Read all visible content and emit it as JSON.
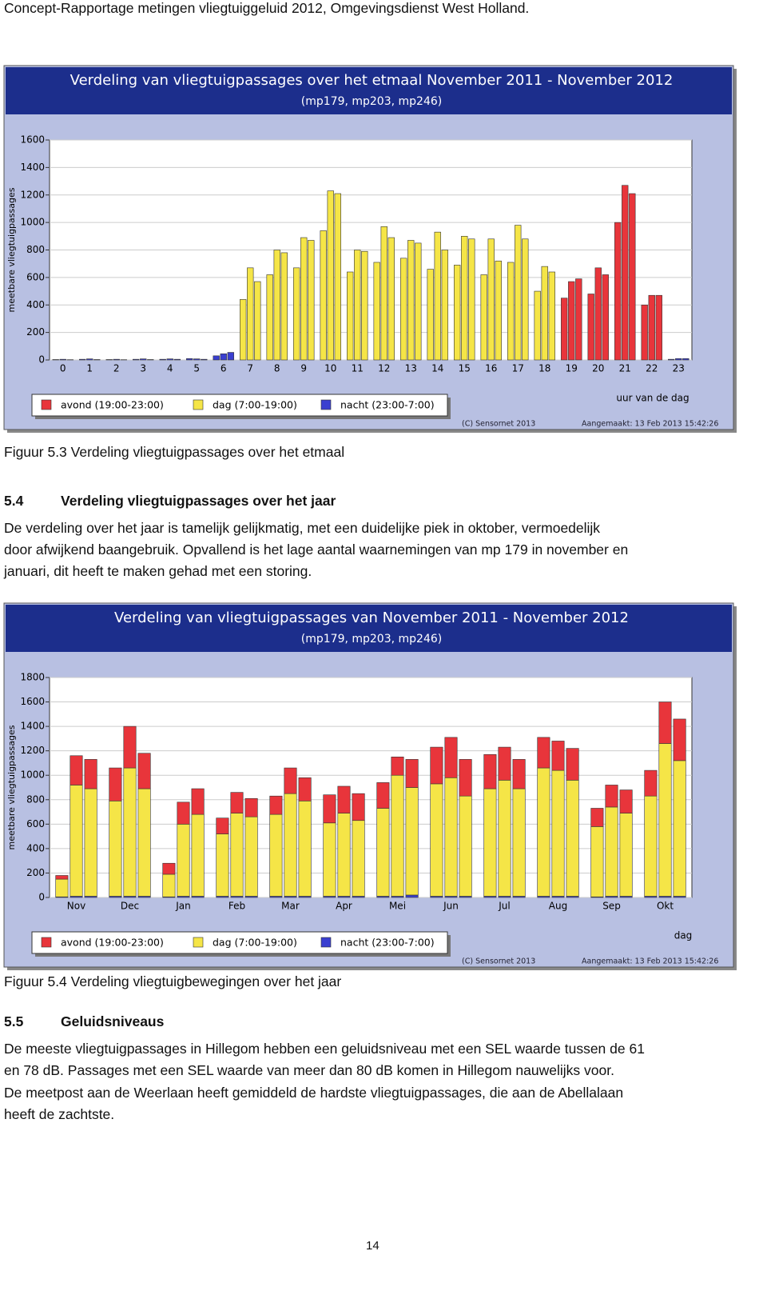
{
  "header": "Concept-Rapportage metingen vliegtuiggeluid 2012, Omgevingsdienst West Holland.",
  "chart_data": [
    {
      "type": "bar",
      "title": "Verdeling van vliegtuigpassages over het etmaal November 2011 - November 2012",
      "subtitle": "(mp179, mp203, mp246)",
      "ylabel": "meetbare vliegtuigpassages",
      "xlabel": "uur van de dag",
      "credit": "(C) Sensornet 2013",
      "created": "Aangemaakt: 13 Feb 2013 15:42:26",
      "categories": [
        "0",
        "1",
        "2",
        "3",
        "4",
        "5",
        "6",
        "7",
        "8",
        "9",
        "10",
        "11",
        "12",
        "13",
        "14",
        "15",
        "16",
        "17",
        "18",
        "19",
        "20",
        "21",
        "22",
        "23"
      ],
      "ylim": [
        0,
        1600
      ],
      "yticks": [
        0,
        200,
        400,
        600,
        800,
        1000,
        1200,
        1400,
        1600
      ],
      "grid": true,
      "series": [
        {
          "name": "avond (19:00-23:00)",
          "color": "#e8353b",
          "values": [
            null,
            null,
            null,
            null,
            null,
            null,
            null,
            null,
            null,
            null,
            null,
            null,
            null,
            null,
            null,
            null,
            null,
            null,
            null,
            [
              450,
              570,
              590
            ],
            [
              480,
              670,
              620
            ],
            [
              1000,
              1270,
              1210
            ],
            [
              400,
              470,
              470
            ],
            null
          ]
        },
        {
          "name": "dag (7:00-19:00)",
          "color": "#f5e547",
          "values": [
            null,
            null,
            null,
            null,
            null,
            null,
            null,
            [
              440,
              670,
              570
            ],
            [
              620,
              800,
              780
            ],
            [
              670,
              890,
              870
            ],
            [
              940,
              1230,
              1210
            ],
            [
              640,
              800,
              790
            ],
            [
              710,
              970,
              890
            ],
            [
              740,
              870,
              850
            ],
            [
              660,
              930,
              800
            ],
            [
              690,
              900,
              880
            ],
            [
              620,
              880,
              720
            ],
            [
              710,
              980,
              880
            ],
            [
              500,
              680,
              640
            ],
            null,
            null,
            null,
            null,
            null
          ]
        },
        {
          "name": "nacht (23:00-7:00)",
          "color": "#3a3fd0",
          "values": [
            [
              3,
              5,
              2
            ],
            [
              5,
              8,
              3
            ],
            [
              3,
              5,
              2
            ],
            [
              5,
              8,
              3
            ],
            [
              5,
              8,
              5
            ],
            [
              10,
              8,
              5
            ],
            [
              30,
              45,
              55
            ],
            null,
            null,
            null,
            null,
            null,
            null,
            null,
            null,
            null,
            null,
            null,
            null,
            null,
            null,
            null,
            null,
            [
              5,
              10,
              10
            ]
          ]
        }
      ]
    },
    {
      "type": "bar",
      "title": "Verdeling van vliegtuigpassages van November 2011 - November 2012",
      "subtitle": "(mp179, mp203, mp246)",
      "ylabel": "meetbare vliegtuigpassages",
      "xlabel": "dag",
      "credit": "(C) Sensornet 2013",
      "created": "Aangemaakt: 13 Feb 2013 15:42:26",
      "categories": [
        "Nov",
        "Dec",
        "Jan",
        "Feb",
        "Mar",
        "Apr",
        "Mei",
        "Jun",
        "Jul",
        "Aug",
        "Sep",
        "Okt"
      ],
      "ylim": [
        0,
        1800
      ],
      "yticks": [
        0,
        200,
        400,
        600,
        800,
        1000,
        1200,
        1400,
        1600,
        1800
      ],
      "grid": true,
      "series": [
        {
          "name": "avond (19:00-23:00)",
          "color": "#e8353b",
          "values": [
            [
              30,
              240,
              240
            ],
            [
              270,
              340,
              290
            ],
            [
              90,
              180,
              210
            ],
            [
              130,
              170,
              150
            ],
            [
              150,
              210,
              190
            ],
            [
              230,
              220,
              220
            ],
            [
              210,
              150,
              230
            ],
            [
              300,
              330,
              300
            ],
            [
              280,
              270,
              240
            ],
            [
              250,
              240,
              260
            ],
            [
              150,
              180,
              190
            ],
            [
              210,
              340,
              340
            ]
          ]
        },
        {
          "name": "dag (7:00-19:00)",
          "color": "#f5e547",
          "values": [
            [
              145,
              910,
              880
            ],
            [
              780,
              1050,
              880
            ],
            [
              185,
              590,
              670
            ],
            [
              510,
              680,
              650
            ],
            [
              670,
              840,
              780
            ],
            [
              600,
              680,
              620
            ],
            [
              720,
              990,
              880
            ],
            [
              920,
              970,
              820
            ],
            [
              880,
              950,
              880
            ],
            [
              1050,
              1030,
              950
            ],
            [
              575,
              730,
              680
            ],
            [
              820,
              1250,
              1110
            ]
          ]
        },
        {
          "name": "nacht (23:00-7:00)",
          "color": "#3a3fd0",
          "values": [
            [
              5,
              10,
              10
            ],
            [
              10,
              10,
              10
            ],
            [
              5,
              10,
              10
            ],
            [
              10,
              10,
              10
            ],
            [
              10,
              10,
              10
            ],
            [
              10,
              10,
              10
            ],
            [
              10,
              10,
              20
            ],
            [
              10,
              10,
              10
            ],
            [
              10,
              10,
              10
            ],
            [
              10,
              10,
              10
            ],
            [
              5,
              10,
              10
            ],
            [
              10,
              10,
              10
            ]
          ]
        }
      ]
    }
  ],
  "captions": [
    "Figuur 5.3 Verdeling vliegtuigpassages over het etmaal",
    "Figuur 5.4 Verdeling vliegtuigbewegingen over het jaar"
  ],
  "sections": [
    {
      "number": "5.4",
      "title": "Verdeling vliegtuigpassages over het jaar",
      "lines": [
        "De verdeling over het jaar is tamelijk gelijkmatig, met een duidelijke piek in oktober, vermoedelijk",
        "door afwijkend baangebruik. Opvallend is het lage aantal waarnemingen van mp 179 in november en",
        "januari, dit heeft te maken gehad met een storing."
      ]
    },
    {
      "number": "5.5",
      "title": "Geluidsniveaus",
      "lines": [
        "De meeste vliegtuigpassages in Hillegom hebben een geluidsniveau met een SEL waarde tussen de 61",
        "en 78 dB. Passages met een SEL waarde van meer dan 80 dB komen in Hillegom nauwelijks voor.",
        "De meetpost aan de Weerlaan heeft gemiddeld de hardste vliegtuigpassages, die aan de Abellalaan",
        "heeft de zachtste."
      ]
    }
  ],
  "page_number": "14"
}
